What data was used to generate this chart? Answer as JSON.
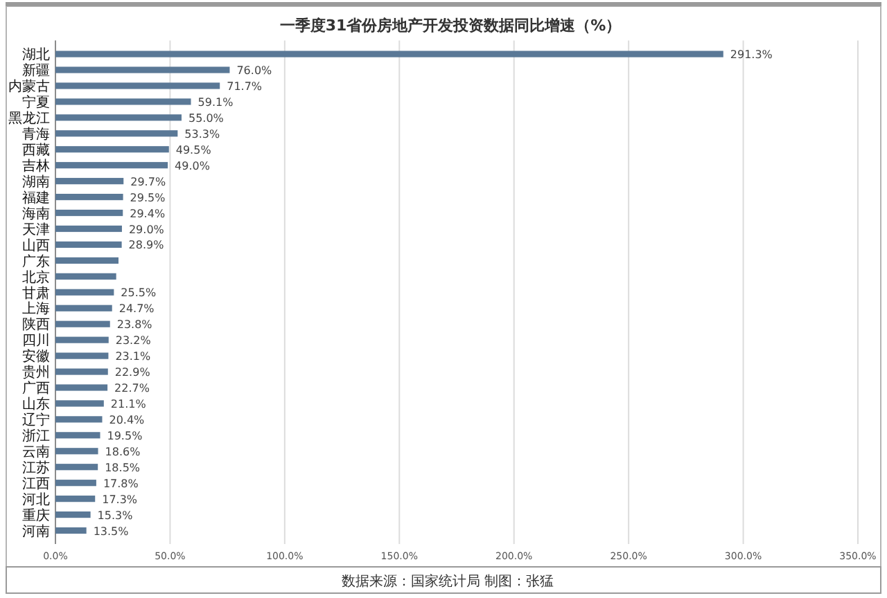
{
  "chart_data": {
    "type": "bar",
    "orientation": "horizontal",
    "title": "一季度31省份房地产开发投资数据同比增速（%）",
    "categories": [
      "湖北",
      "新疆",
      "内蒙古",
      "宁夏",
      "黑龙江",
      "青海",
      "西藏",
      "吉林",
      "湖南",
      "福建",
      "海南",
      "天津",
      "山西",
      "广东",
      "北京",
      "甘肃",
      "上海",
      "陕西",
      "四川",
      "安徽",
      "贵州",
      "广西",
      "山东",
      "辽宁",
      "浙江",
      "云南",
      "江苏",
      "江西",
      "河北",
      "重庆",
      "河南"
    ],
    "values": [
      291.3,
      76.0,
      71.7,
      59.1,
      55.0,
      53.3,
      49.5,
      49.0,
      29.7,
      29.5,
      29.4,
      29.0,
      28.9,
      27.5,
      26.5,
      25.5,
      24.7,
      23.8,
      23.2,
      23.1,
      22.9,
      22.7,
      21.1,
      20.4,
      19.5,
      18.6,
      18.5,
      17.8,
      17.3,
      15.3,
      13.5
    ],
    "value_labels": [
      "291.3%",
      "76.0%",
      "71.7%",
      "59.1%",
      "55.0%",
      "53.3%",
      "49.5%",
      "49.0%",
      "29.7%",
      "29.5%",
      "29.4%",
      "29.0%",
      "28.9%",
      null,
      null,
      "25.5%",
      "24.7%",
      "23.8%",
      "23.2%",
      "23.1%",
      "22.9%",
      "22.7%",
      "21.1%",
      "20.4%",
      "19.5%",
      "18.6%",
      "18.5%",
      "17.8%",
      "17.3%",
      "15.3%",
      "13.5%"
    ],
    "color": "#5a7896",
    "xlim": [
      0,
      350
    ],
    "xticks": [
      {
        "value": 0,
        "label": "0.0%"
      },
      {
        "value": 50,
        "label": "50.0%"
      },
      {
        "value": 100,
        "label": "100.0%"
      },
      {
        "value": 150,
        "label": "150.0%"
      },
      {
        "value": 200,
        "label": "200.0%"
      },
      {
        "value": 250,
        "label": "250.0%"
      },
      {
        "value": 300,
        "label": "300.0%"
      },
      {
        "value": 350,
        "label": "350.0%"
      }
    ],
    "grid": "x",
    "annotations": [
      "数据来源：国家统计局 制图：张猛"
    ]
  }
}
